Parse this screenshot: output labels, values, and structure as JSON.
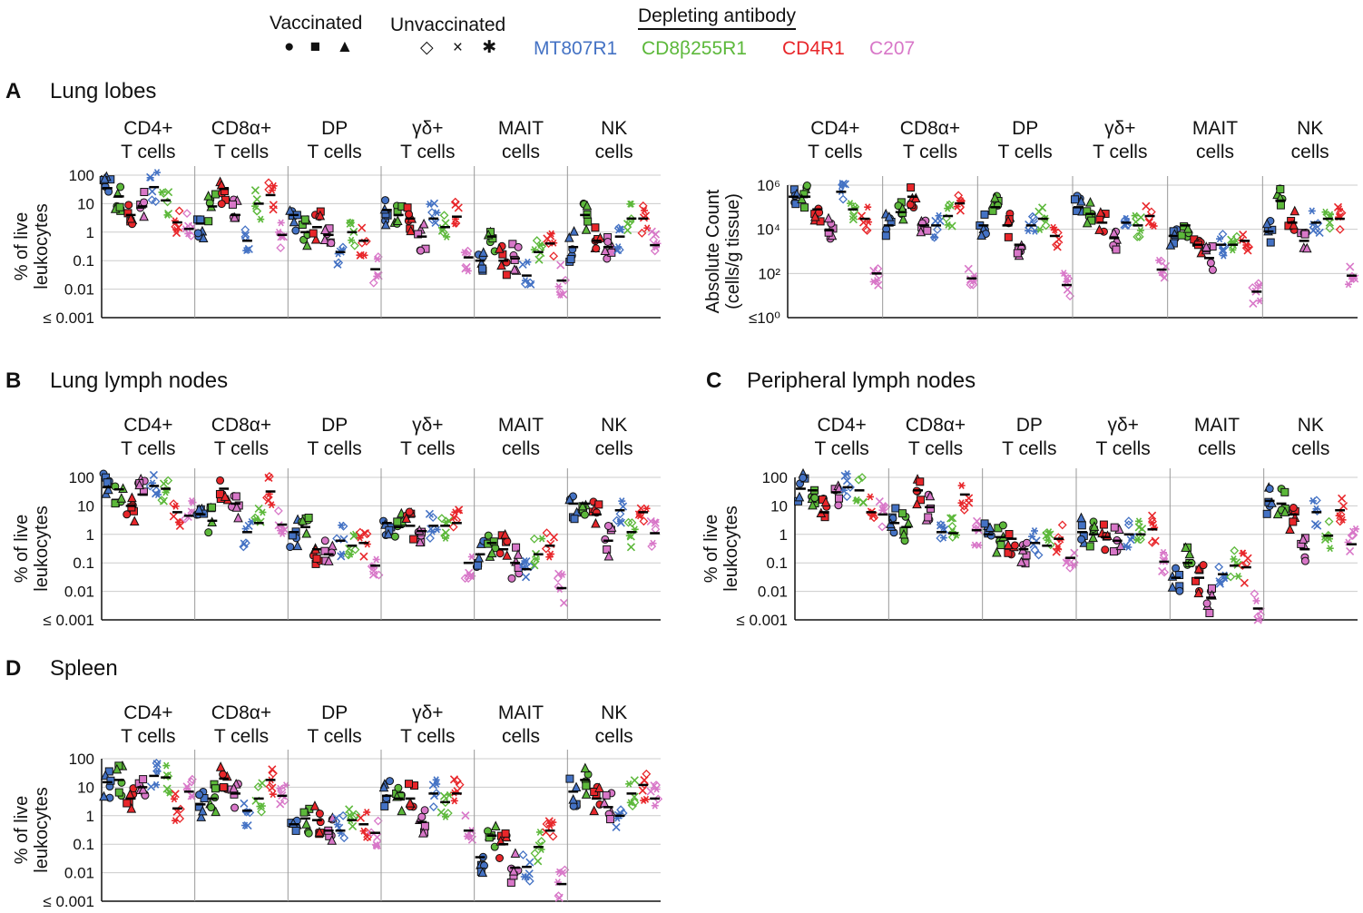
{
  "legend": {
    "vaccinated_label": "Vaccinated",
    "unvaccinated_label": "Unvaccinated",
    "vaccinated_symbols": "● ■ ▲",
    "unvaccinated_symbols": "◇ × ✱",
    "depleting_label": "Depleting antibody",
    "antibodies": [
      {
        "name": "MT807R1",
        "color": "#4472c4"
      },
      {
        "name": "CD8β255R1",
        "color": "#5cb83a"
      },
      {
        "name": "CD4R1",
        "color": "#e8262a"
      },
      {
        "name": "C207",
        "color": "#d877c8"
      }
    ]
  },
  "colors": {
    "vaccinated_fill_outline": "#111111",
    "median_bar": "#000000",
    "gridline": "#cccccc",
    "separator": "#999999"
  },
  "cell_types": [
    {
      "line1": "CD4+",
      "line2": "T cells"
    },
    {
      "line1": "CD8α+",
      "line2": "T cells"
    },
    {
      "line1": "DP",
      "line2": "T cells"
    },
    {
      "line1": "γδ+",
      "line2": "T cells"
    },
    {
      "line1": "MAIT",
      "line2": "cells"
    },
    {
      "line1": "NK",
      "line2": "cells"
    }
  ],
  "panels": [
    {
      "letter": "A",
      "title": "Lung lobes"
    },
    {
      "letter": "B",
      "title": "Lung lymph nodes"
    },
    {
      "letter": "C",
      "title": "Peripheral lymph nodes"
    },
    {
      "letter": "D",
      "title": "Spleen"
    }
  ],
  "chart_data": [
    {
      "id": "A-percent",
      "type": "scatter",
      "title": "Lung lobes",
      "ylabel": "% of live leukocytes",
      "yscale": "log",
      "ylim": [
        0.001,
        100
      ],
      "yticks": [
        "100",
        "10",
        "1",
        "0.1",
        "0.01",
        "≤ 0.001"
      ],
      "medians": [
        [
          35,
          18,
          4,
          8,
          38,
          13,
          2.2,
          1.3
        ],
        [
          2,
          8,
          33,
          4,
          0.5,
          10,
          20,
          0.8
        ],
        [
          4,
          1,
          1.5,
          0.8,
          0.2,
          1,
          0.5,
          0.05
        ],
        [
          6,
          4,
          3,
          0.7,
          3,
          1.5,
          3.5,
          0.13
        ],
        [
          0.1,
          0.7,
          0.1,
          0.12,
          0.03,
          0.2,
          0.4,
          0.02
        ],
        [
          0.3,
          4,
          0.5,
          0.3,
          0.7,
          3,
          3,
          0.35
        ]
      ]
    },
    {
      "id": "A-absolute",
      "type": "scatter",
      "title": "Lung lobes",
      "ylabel": "Absolute Count (cells/g tissue)",
      "yscale": "log",
      "ylim": [
        1,
        1000000
      ],
      "yticks": [
        "10⁶",
        "10⁴",
        "10²",
        "≤10⁰"
      ],
      "medians": [
        [
          300000,
          300000,
          80000,
          9000,
          500000,
          80000,
          30000,
          100
        ],
        [
          15000,
          60000,
          300000,
          15000,
          15000,
          40000,
          150000,
          60
        ],
        [
          15000,
          100000,
          15000,
          2000,
          15000,
          30000,
          5000,
          30
        ],
        [
          100000,
          50000,
          20000,
          4000,
          20000,
          15000,
          40000,
          150
        ],
        [
          5000,
          15000,
          2000,
          500,
          2000,
          2000,
          3000,
          15
        ],
        [
          8000,
          200000,
          20000,
          3000,
          20000,
          30000,
          30000,
          80
        ]
      ]
    },
    {
      "id": "B-percent",
      "type": "scatter",
      "title": "Lung lymph nodes",
      "ylabel": "% of live leukocytes",
      "yscale": "log",
      "ylim": [
        0.001,
        100
      ],
      "yticks": [
        "100",
        "10",
        "1",
        "0.1",
        "0.01",
        "≤ 0.001"
      ],
      "medians": [
        [
          45,
          38,
          10,
          25,
          50,
          40,
          6,
          4.5
        ],
        [
          5,
          3,
          40,
          12,
          1.2,
          2.5,
          32,
          2.2
        ],
        [
          1.2,
          1.8,
          0.3,
          0.2,
          0.6,
          0.4,
          0.5,
          0.08
        ],
        [
          2.5,
          1.8,
          2,
          1.3,
          2,
          2,
          2.5,
          0.1
        ],
        [
          0.2,
          0.5,
          0.3,
          0.1,
          0.06,
          0.2,
          0.4,
          0.013
        ],
        [
          12,
          12,
          5,
          0.6,
          7,
          1.2,
          6,
          1.1
        ]
      ]
    },
    {
      "id": "C-percent",
      "type": "scatter",
      "title": "Peripheral lymph nodes",
      "ylabel": "% of live leukocytes",
      "yscale": "log",
      "ylim": [
        0.001,
        100
      ],
      "yticks": [
        "100",
        "10",
        "1",
        "0.1",
        "0.01",
        "≤ 0.001"
      ],
      "medians": [
        [
          40,
          35,
          6,
          30,
          45,
          35,
          6,
          5
        ],
        [
          2.5,
          1.8,
          35,
          9,
          1.2,
          1.1,
          25,
          1.4
        ],
        [
          1,
          0.8,
          0.7,
          0.3,
          0.5,
          0.4,
          0.7,
          0.15
        ],
        [
          1.2,
          1,
          0.8,
          0.6,
          1,
          1,
          1.5,
          0.11
        ],
        [
          0.03,
          0.1,
          0.03,
          0.006,
          0.04,
          0.08,
          0.07,
          0.0025
        ],
        [
          15,
          12,
          5,
          0.3,
          6,
          0.9,
          7,
          0.45
        ]
      ]
    },
    {
      "id": "D-percent",
      "type": "scatter",
      "title": "Spleen",
      "ylabel": "% of live leukocytes",
      "yscale": "log",
      "ylim": [
        0.001,
        100
      ],
      "yticks": [
        "100",
        "10",
        "1",
        "0.1",
        "0.01",
        "≤ 0.001"
      ],
      "medians": [
        [
          15,
          18,
          4,
          10,
          25,
          22,
          1.8,
          7
        ],
        [
          2.5,
          4,
          20,
          6,
          1.5,
          4,
          18,
          5
        ],
        [
          0.5,
          0.8,
          0.7,
          0.3,
          0.3,
          0.7,
          0.5,
          0.25
        ],
        [
          5,
          4,
          4,
          0.6,
          6,
          3,
          6,
          0.3
        ],
        [
          0.035,
          0.2,
          0.1,
          0.015,
          0.016,
          0.08,
          0.3,
          0.004
        ],
        [
          7,
          18,
          4,
          2,
          1,
          6,
          12,
          4
        ]
      ]
    }
  ]
}
